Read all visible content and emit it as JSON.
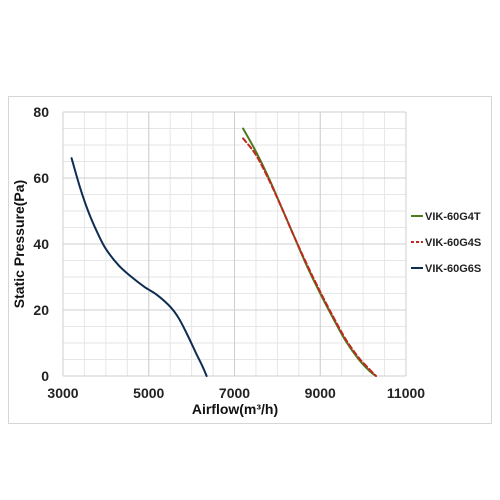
{
  "chart_data": {
    "type": "line",
    "title": "",
    "xlabel": "Airflow(m³/h)",
    "ylabel": "Static Pressure(Pa)",
    "xlim": [
      3000,
      11000
    ],
    "ylim": [
      0,
      80
    ],
    "x_ticks": [
      3000,
      5000,
      7000,
      9000,
      11000
    ],
    "y_ticks": [
      0,
      20,
      40,
      60,
      80
    ],
    "x_tick_labels": [
      "3000",
      "5000",
      "7000",
      "9000",
      "11000"
    ],
    "y_tick_labels": [
      "0",
      "20",
      "40",
      "60",
      "80"
    ],
    "grid": true,
    "legend_position": "right",
    "series": [
      {
        "name": "VIK-60G4T",
        "color": "#4e7a1f",
        "dash": "solid",
        "points": [
          [
            7200,
            75
          ],
          [
            7500,
            68
          ],
          [
            7800,
            60
          ],
          [
            8100,
            51
          ],
          [
            8400,
            42
          ],
          [
            8700,
            33
          ],
          [
            9000,
            25
          ],
          [
            9300,
            17.5
          ],
          [
            9600,
            10.5
          ],
          [
            9900,
            5
          ],
          [
            10150,
            1.5
          ],
          [
            10300,
            0
          ]
        ]
      },
      {
        "name": "VIK-60G4S",
        "color": "#c0281e",
        "dash": "dashed",
        "points": [
          [
            7200,
            72
          ],
          [
            7500,
            67
          ],
          [
            7800,
            59.5
          ],
          [
            8100,
            51
          ],
          [
            8400,
            42
          ],
          [
            8700,
            33.5
          ],
          [
            9000,
            25.5
          ],
          [
            9300,
            18
          ],
          [
            9600,
            11
          ],
          [
            9900,
            5.5
          ],
          [
            10150,
            2
          ],
          [
            10300,
            0
          ]
        ]
      },
      {
        "name": "VIK-60G6S",
        "color": "#0f2c52",
        "dash": "solid",
        "points": [
          [
            3200,
            66
          ],
          [
            3400,
            57
          ],
          [
            3600,
            49.5
          ],
          [
            3800,
            43.5
          ],
          [
            4000,
            38.5
          ],
          [
            4300,
            33.5
          ],
          [
            4600,
            30
          ],
          [
            4900,
            27
          ],
          [
            5200,
            24.5
          ],
          [
            5500,
            21
          ],
          [
            5700,
            17.5
          ],
          [
            5900,
            12.5
          ],
          [
            6100,
            7
          ],
          [
            6250,
            3
          ],
          [
            6350,
            0
          ]
        ]
      }
    ]
  }
}
